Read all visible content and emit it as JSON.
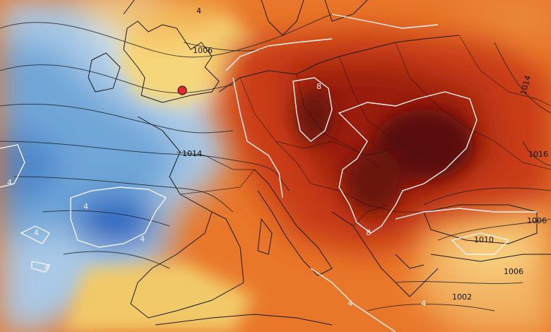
{
  "map": {
    "isobar_labels": [
      "4",
      "1006",
      "1014",
      "1014",
      "1016",
      "1006",
      "1010",
      "1006",
      "1002"
    ],
    "anomaly_labels": [
      "4",
      "4",
      "4",
      "4",
      "4",
      "8",
      "8",
      "4",
      "4"
    ],
    "marker": {
      "color": "#e8262a"
    },
    "colors": {
      "cold_deep": "#1546b5",
      "cold": "#6fa6d8",
      "cool": "#d6e8f3",
      "neutral": "#f4e0a0",
      "warm": "#f3a63b",
      "hot": "#e05a1e",
      "very_hot": "#a9220f",
      "extreme": "#571009"
    }
  }
}
